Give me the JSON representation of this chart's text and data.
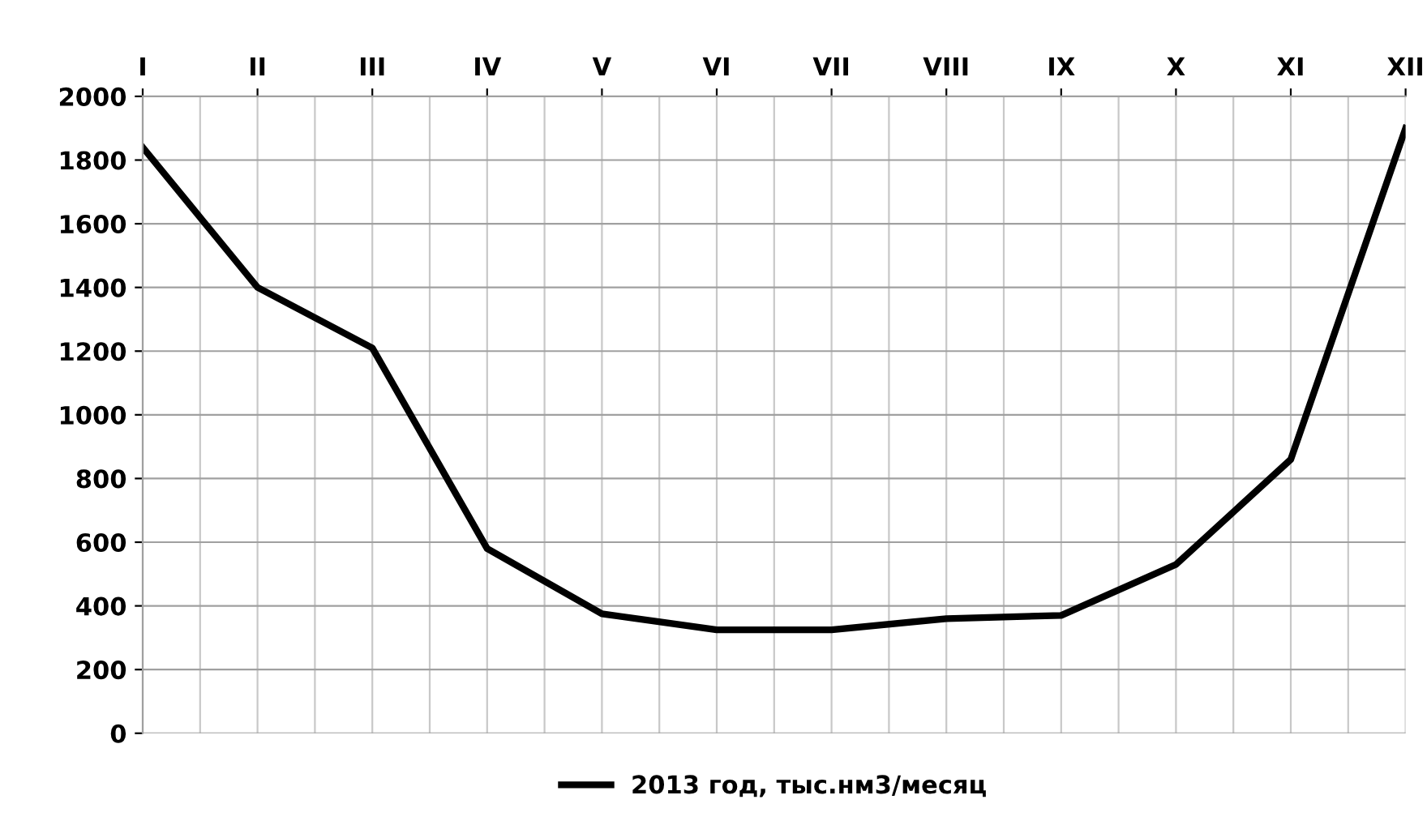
{
  "chart_data": {
    "type": "line",
    "categories": [
      "I",
      "II",
      "III",
      "IV",
      "V",
      "VI",
      "VII",
      "VIII",
      "IX",
      "X",
      "XI",
      "XII"
    ],
    "series": [
      {
        "name": "2013 год, тыс.нм3/месяц",
        "color": "#000000",
        "values": [
          1840,
          1400,
          1210,
          580,
          375,
          325,
          325,
          360,
          370,
          530,
          860,
          1900
        ]
      }
    ],
    "ylim": [
      0,
      2000
    ],
    "yticks": [
      0,
      200,
      400,
      600,
      800,
      1000,
      1200,
      1400,
      1600,
      1800,
      2000
    ],
    "grid": true,
    "legend": "bottom",
    "marker": "none",
    "line_style": "solid"
  }
}
